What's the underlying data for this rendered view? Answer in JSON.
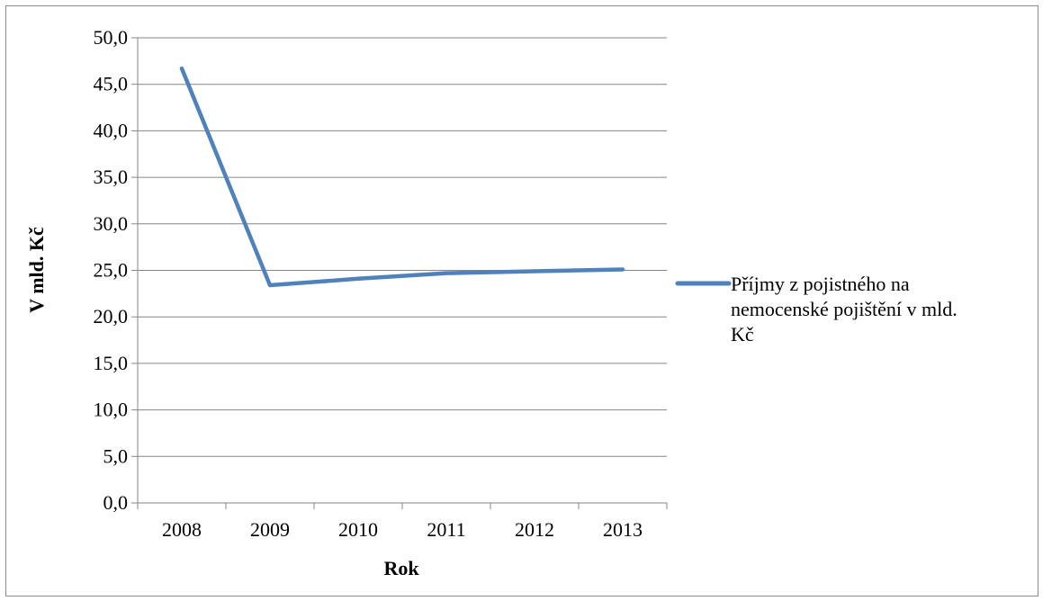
{
  "chart_data": {
    "type": "line",
    "categories": [
      "2008",
      "2009",
      "2010",
      "2011",
      "2012",
      "2013"
    ],
    "series": [
      {
        "name": "Příjmy z pojistného na nemocenské pojištění v mld. Kč",
        "name_lines": [
          "Příjmy z pojistného na",
          "nemocenské pojištění v mld.",
          "Kč"
        ],
        "values": [
          46.7,
          23.4,
          24.1,
          24.7,
          24.9,
          25.1
        ],
        "color": "#4f81bd"
      }
    ],
    "title": "",
    "xlabel": "Rok",
    "ylabel": "V mld. Kč",
    "ylim": [
      0,
      50
    ],
    "ytick_step": 5,
    "ytick_labels": [
      "0,0",
      "5,0",
      "10,0",
      "15,0",
      "20,0",
      "25,0",
      "30,0",
      "35,0",
      "40,0",
      "45,0",
      "50,0"
    ],
    "grid": "horizontal",
    "legend_position": "right",
    "gridline_color": "#868686",
    "axis_color": "#868686"
  }
}
